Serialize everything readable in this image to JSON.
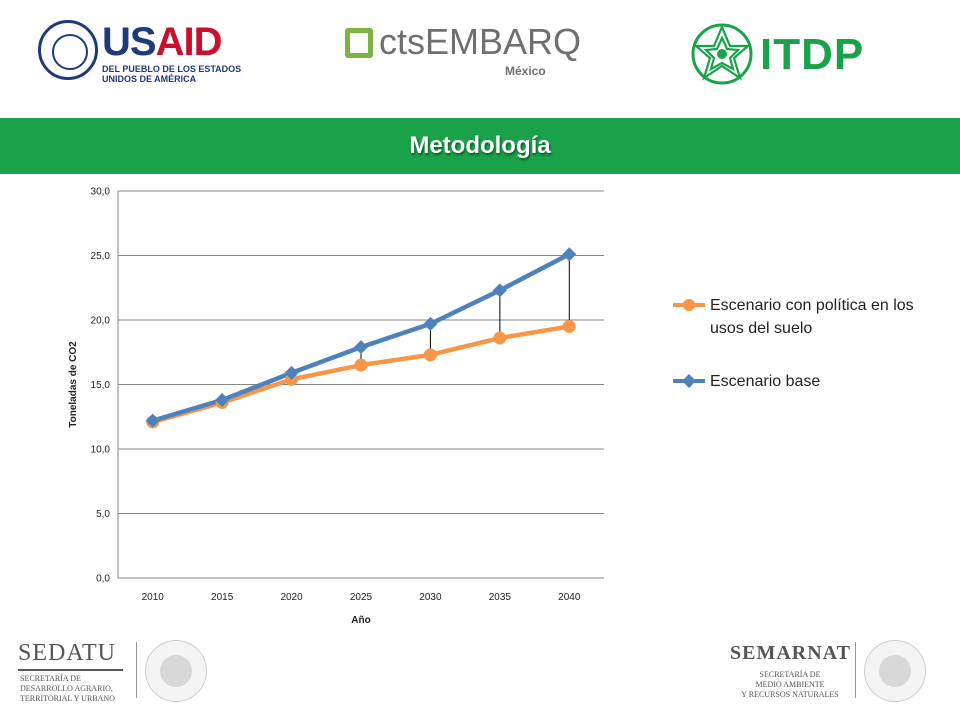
{
  "logos": {
    "usaid": {
      "word_us": "US",
      "word_aid": "AID",
      "subtitle": "DEL PUEBLO DE LOS ESTADOS\nUNIDOS DE AMÉRICA",
      "seal_icon": "usaid-seal-icon"
    },
    "embarq": {
      "name": "ctsEMBARQ",
      "country": "México"
    },
    "itdp": {
      "name": "ITDP"
    },
    "sedatu": {
      "name": "SEDATU",
      "subtitle": "SECRETARÍA DE\nDESARROLLO AGRARIO,\nTERRITORIAL Y URBANO"
    },
    "semarnat": {
      "name": "SEMARNAT",
      "subtitle": "SECRETARÍA DE\nMEDIO AMBIENTE\nY RECURSOS NATURALES"
    }
  },
  "slide": {
    "title": "Metodología"
  },
  "colors": {
    "band": "#1aa24a",
    "policy": "#f79646",
    "base": "#4f81bd",
    "grid": "#868686"
  },
  "chart_data": {
    "type": "line",
    "title": "",
    "xlabel": "Año",
    "ylabel": "Toneladas de CO2",
    "categories": [
      "2010",
      "2015",
      "2020",
      "2025",
      "2030",
      "2035",
      "2040"
    ],
    "y_ticks": [
      "0,0",
      "5,0",
      "10,0",
      "15,0",
      "20,0",
      "25,0",
      "30,0"
    ],
    "ylim": [
      0,
      30
    ],
    "grid": true,
    "legend_position": "right",
    "series": [
      {
        "name": "Escenario con política en los usos del suelo",
        "color": "#f79646",
        "marker": "circle",
        "values": [
          12.1,
          13.6,
          15.4,
          16.5,
          17.3,
          18.6,
          19.5
        ]
      },
      {
        "name": "Escenario base",
        "color": "#4f81bd",
        "marker": "diamond",
        "values": [
          12.2,
          13.8,
          15.9,
          17.9,
          19.7,
          22.3,
          25.1
        ]
      }
    ]
  }
}
